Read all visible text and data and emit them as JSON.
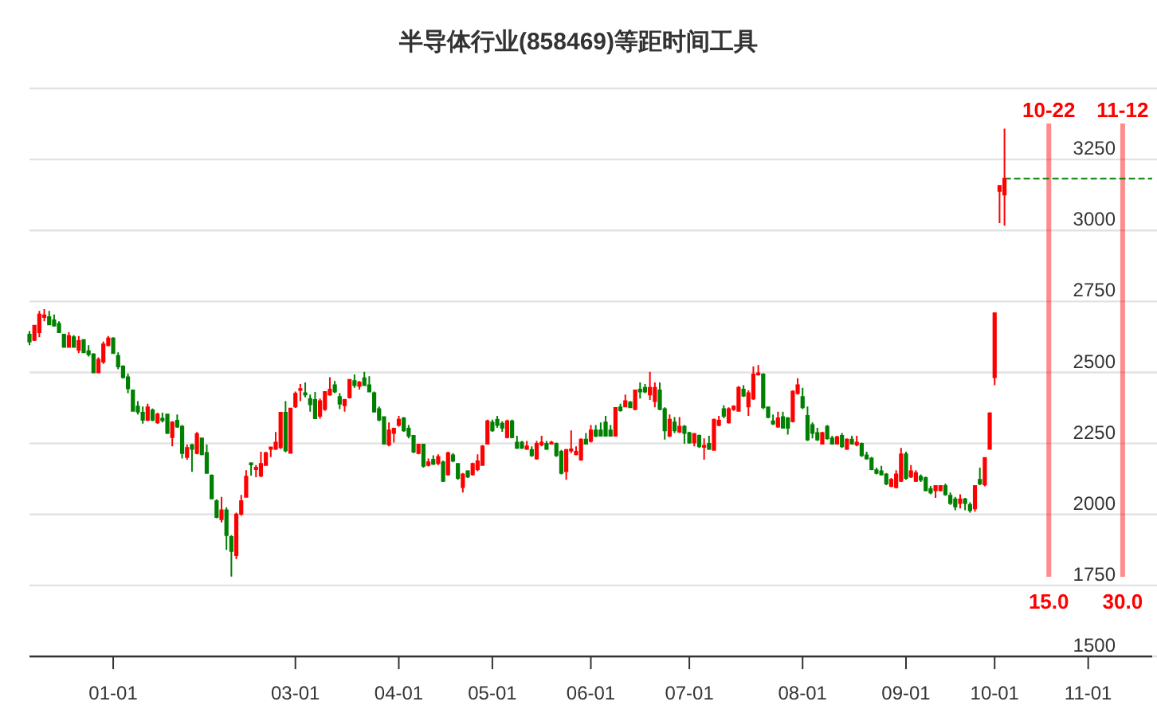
{
  "chart_data": {
    "type": "candlestick",
    "title": "半导体行业(858469)等距时间工具",
    "categories": [
      null,
      null,
      null,
      null,
      null,
      null,
      null,
      null,
      null,
      null,
      null,
      null,
      null,
      null,
      null,
      null,
      null,
      "01-01",
      null,
      null,
      null,
      null,
      null,
      null,
      null,
      null,
      null,
      null,
      null,
      null,
      null,
      null,
      null,
      null,
      null,
      null,
      null,
      null,
      null,
      null,
      null,
      null,
      null,
      null,
      null,
      null,
      null,
      null,
      null,
      null,
      null,
      null,
      null,
      null,
      "03-01",
      null,
      null,
      null,
      null,
      null,
      null,
      null,
      null,
      null,
      null,
      null,
      null,
      null,
      null,
      null,
      null,
      null,
      null,
      null,
      null,
      "04-01",
      null,
      null,
      null,
      null,
      null,
      null,
      null,
      null,
      null,
      null,
      null,
      null,
      null,
      null,
      null,
      null,
      null,
      null,
      "05-01",
      null,
      null,
      null,
      null,
      null,
      null,
      null,
      null,
      null,
      null,
      null,
      null,
      null,
      null,
      null,
      null,
      null,
      null,
      null,
      "06-01",
      null,
      null,
      null,
      null,
      null,
      null,
      null,
      null,
      null,
      null,
      null,
      null,
      null,
      null,
      null,
      null,
      null,
      null,
      null,
      "07-01",
      null,
      null,
      null,
      null,
      null,
      null,
      null,
      null,
      null,
      null,
      null,
      null,
      null,
      null,
      null,
      null,
      null,
      null,
      null,
      null,
      null,
      null,
      "08-01",
      null,
      null,
      null,
      null,
      null,
      null,
      null,
      null,
      null,
      null,
      null,
      null,
      null,
      null,
      null,
      null,
      null,
      null,
      null,
      null,
      "09-01",
      null,
      null,
      null,
      null,
      null,
      null,
      null,
      null,
      null,
      null,
      null,
      null,
      null,
      null,
      null,
      null,
      null,
      "10-01",
      null,
      null,
      null,
      null,
      null,
      null,
      null,
      null,
      null,
      null,
      null,
      null,
      null,
      null,
      null,
      null,
      null,
      null,
      "11-01",
      null,
      null,
      null,
      null,
      null,
      null,
      null,
      null,
      null,
      null,
      null,
      null,
      null
    ],
    "ohlc": [
      [
        2633,
        2646,
        2596,
        2609
      ],
      [
        2614,
        2667,
        2611,
        2665
      ],
      [
        2642,
        2717,
        2624,
        2704
      ],
      [
        2695,
        2723,
        2680,
        2701
      ],
      [
        2695,
        2717,
        2667,
        2669
      ],
      [
        2684,
        2704,
        2661,
        2665
      ],
      [
        2671,
        2680,
        2639,
        2642
      ],
      [
        2633,
        2636,
        2588,
        2590
      ],
      [
        2590,
        2642,
        2590,
        2628
      ],
      [
        2624,
        2631,
        2590,
        2590
      ],
      [
        2579,
        2628,
        2568,
        2611
      ],
      [
        2614,
        2614,
        2568,
        2571
      ],
      [
        2575,
        2596,
        2556,
        2564
      ],
      [
        2564,
        2568,
        2500,
        2500
      ],
      [
        2500,
        2553,
        2500,
        2545
      ],
      [
        2538,
        2609,
        2530,
        2599
      ],
      [
        2596,
        2628,
        2592,
        2620
      ],
      [
        2620,
        2624,
        2568,
        2568
      ],
      [
        2558,
        2571,
        2511,
        2521
      ],
      [
        2521,
        2525,
        2478,
        2483
      ],
      [
        2483,
        2496,
        2427,
        2444
      ],
      [
        2437,
        2440,
        2362,
        2365
      ],
      [
        2380,
        2399,
        2352,
        2362
      ],
      [
        2358,
        2380,
        2320,
        2333
      ],
      [
        2333,
        2390,
        2328,
        2377
      ],
      [
        2367,
        2373,
        2328,
        2333
      ],
      [
        2324,
        2358,
        2319,
        2352
      ],
      [
        2337,
        2358,
        2324,
        2332
      ],
      [
        2352,
        2352,
        2283,
        2287
      ],
      [
        2272,
        2328,
        2240,
        2324
      ],
      [
        2330,
        2352,
        2305,
        2309
      ],
      [
        2309,
        2315,
        2197,
        2216
      ],
      [
        2202,
        2246,
        2193,
        2234
      ],
      [
        2244,
        2249,
        2150,
        2231
      ],
      [
        2216,
        2290,
        2212,
        2283
      ],
      [
        2268,
        2268,
        2208,
        2212
      ],
      [
        2217,
        2246,
        2146,
        2146
      ],
      [
        2137,
        2141,
        2056,
        2056
      ],
      [
        2047,
        2053,
        1987,
        1991
      ],
      [
        1983,
        2062,
        1972,
        2015
      ],
      [
        2015,
        2025,
        1875,
        1927
      ],
      [
        1921,
        1927,
        1781,
        1871
      ],
      [
        1856,
        2006,
        1843,
        2000
      ],
      [
        2002,
        2069,
        1996,
        2047
      ],
      [
        2062,
        2156,
        2062,
        2133
      ],
      [
        2180,
        2184,
        2137,
        2176
      ],
      [
        2159,
        2174,
        2131,
        2165
      ],
      [
        2137,
        2221,
        2131,
        2178
      ],
      [
        2174,
        2221,
        2174,
        2216
      ],
      [
        2231,
        2236,
        2202,
        2236
      ],
      [
        2231,
        2290,
        2227,
        2253
      ],
      [
        2236,
        2358,
        2231,
        2358
      ],
      [
        2358,
        2399,
        2219,
        2225
      ],
      [
        2217,
        2373,
        2217,
        2373
      ],
      [
        2380,
        2433,
        2375,
        2425
      ],
      [
        2438,
        2459,
        2399,
        2442
      ],
      [
        2427,
        2465,
        2412,
        2422
      ],
      [
        2407,
        2422,
        2362,
        2388
      ],
      [
        2403,
        2431,
        2337,
        2339
      ],
      [
        2347,
        2408,
        2337,
        2399
      ],
      [
        2371,
        2431,
        2365,
        2431
      ],
      [
        2422,
        2483,
        2418,
        2440
      ],
      [
        2455,
        2470,
        2427,
        2433
      ],
      [
        2414,
        2427,
        2371,
        2390
      ],
      [
        2384,
        2407,
        2362,
        2403
      ],
      [
        2412,
        2474,
        2408,
        2474
      ],
      [
        2470,
        2493,
        2446,
        2455
      ],
      [
        2452,
        2470,
        2440,
        2465
      ],
      [
        2480,
        2502,
        2452,
        2455
      ],
      [
        2455,
        2487,
        2433,
        2433
      ],
      [
        2427,
        2433,
        2362,
        2362
      ],
      [
        2371,
        2380,
        2328,
        2334
      ],
      [
        2343,
        2343,
        2246,
        2249
      ],
      [
        2246,
        2324,
        2240,
        2296
      ],
      [
        2287,
        2305,
        2253,
        2302
      ],
      [
        2315,
        2347,
        2309,
        2334
      ],
      [
        2339,
        2343,
        2291,
        2296
      ],
      [
        2302,
        2315,
        2268,
        2277
      ],
      [
        2277,
        2277,
        2216,
        2221
      ],
      [
        2216,
        2249,
        2212,
        2246
      ],
      [
        2246,
        2249,
        2165,
        2171
      ],
      [
        2174,
        2197,
        2169,
        2184
      ],
      [
        2193,
        2208,
        2174,
        2178
      ],
      [
        2180,
        2212,
        2174,
        2203
      ],
      [
        2184,
        2189,
        2114,
        2118
      ],
      [
        2141,
        2221,
        2137,
        2216
      ],
      [
        2208,
        2216,
        2184,
        2189
      ],
      [
        2178,
        2178,
        2122,
        2128
      ],
      [
        2096,
        2146,
        2077,
        2141
      ],
      [
        2152,
        2156,
        2128,
        2133
      ],
      [
        2141,
        2182,
        2137,
        2178
      ],
      [
        2159,
        2212,
        2152,
        2187
      ],
      [
        2174,
        2244,
        2171,
        2240
      ],
      [
        2249,
        2334,
        2246,
        2328
      ],
      [
        2324,
        2334,
        2291,
        2296
      ],
      [
        2334,
        2347,
        2305,
        2315
      ],
      [
        2320,
        2328,
        2291,
        2305
      ],
      [
        2272,
        2334,
        2268,
        2328
      ],
      [
        2328,
        2334,
        2268,
        2272
      ],
      [
        2253,
        2277,
        2231,
        2234
      ],
      [
        2253,
        2259,
        2231,
        2234
      ],
      [
        2231,
        2259,
        2227,
        2240
      ],
      [
        2227,
        2240,
        2203,
        2208
      ],
      [
        2197,
        2259,
        2193,
        2249
      ],
      [
        2246,
        2277,
        2240,
        2253
      ],
      [
        2249,
        2259,
        2227,
        2231
      ],
      [
        2249,
        2259,
        2246,
        2253
      ],
      [
        2249,
        2253,
        2203,
        2208
      ],
      [
        2221,
        2227,
        2141,
        2146
      ],
      [
        2152,
        2231,
        2122,
        2227
      ],
      [
        2225,
        2296,
        2216,
        2229
      ],
      [
        2212,
        2240,
        2208,
        2221
      ],
      [
        2193,
        2268,
        2189,
        2264
      ],
      [
        2264,
        2287,
        2246,
        2249
      ],
      [
        2259,
        2315,
        2253,
        2296
      ],
      [
        2296,
        2315,
        2272,
        2277
      ],
      [
        2296,
        2324,
        2274,
        2277
      ],
      [
        2324,
        2347,
        2274,
        2277
      ],
      [
        2296,
        2315,
        2274,
        2277
      ],
      [
        2277,
        2377,
        2274,
        2375
      ],
      [
        2377,
        2390,
        2362,
        2367
      ],
      [
        2380,
        2422,
        2377,
        2399
      ],
      [
        2395,
        2399,
        2377,
        2377
      ],
      [
        2371,
        2440,
        2367,
        2437
      ],
      [
        2440,
        2465,
        2408,
        2433
      ],
      [
        2446,
        2459,
        2427,
        2433
      ],
      [
        2422,
        2502,
        2403,
        2446
      ],
      [
        2399,
        2465,
        2377,
        2446
      ],
      [
        2437,
        2465,
        2367,
        2371
      ],
      [
        2371,
        2377,
        2264,
        2296
      ],
      [
        2277,
        2352,
        2272,
        2334
      ],
      [
        2324,
        2343,
        2287,
        2296
      ],
      [
        2291,
        2343,
        2287,
        2309
      ],
      [
        2309,
        2315,
        2249,
        2287
      ],
      [
        2287,
        2291,
        2249,
        2253
      ],
      [
        2253,
        2287,
        2240,
        2283
      ],
      [
        2277,
        2281,
        2234,
        2240
      ],
      [
        2238,
        2268,
        2193,
        2242
      ],
      [
        2249,
        2277,
        2227,
        2231
      ],
      [
        2227,
        2337,
        2225,
        2334
      ],
      [
        2315,
        2347,
        2311,
        2330
      ],
      [
        2371,
        2384,
        2339,
        2347
      ],
      [
        2324,
        2377,
        2320,
        2371
      ],
      [
        2371,
        2384,
        2365,
        2380
      ],
      [
        2365,
        2452,
        2362,
        2446
      ],
      [
        2440,
        2455,
        2414,
        2418
      ],
      [
        2380,
        2437,
        2347,
        2427
      ],
      [
        2408,
        2521,
        2403,
        2493
      ],
      [
        2493,
        2526,
        2489,
        2497
      ],
      [
        2493,
        2497,
        2371,
        2377
      ],
      [
        2377,
        2380,
        2339,
        2343
      ],
      [
        2328,
        2352,
        2315,
        2320
      ],
      [
        2309,
        2362,
        2305,
        2339
      ],
      [
        2343,
        2362,
        2302,
        2305
      ],
      [
        2339,
        2343,
        2281,
        2305
      ],
      [
        2328,
        2437,
        2324,
        2433
      ],
      [
        2427,
        2480,
        2422,
        2455
      ],
      [
        2414,
        2446,
        2371,
        2377
      ],
      [
        2347,
        2380,
        2259,
        2264
      ],
      [
        2315,
        2324,
        2268,
        2287
      ],
      [
        2287,
        2305,
        2259,
        2264
      ],
      [
        2249,
        2291,
        2246,
        2287
      ],
      [
        2309,
        2315,
        2264,
        2268
      ],
      [
        2268,
        2277,
        2246,
        2249
      ],
      [
        2249,
        2277,
        2246,
        2272
      ],
      [
        2277,
        2287,
        2234,
        2240
      ],
      [
        2231,
        2268,
        2227,
        2264
      ],
      [
        2264,
        2277,
        2246,
        2249
      ],
      [
        2246,
        2277,
        2240,
        2253
      ],
      [
        2249,
        2253,
        2203,
        2208
      ],
      [
        2208,
        2221,
        2193,
        2197
      ],
      [
        2197,
        2203,
        2156,
        2159
      ],
      [
        2156,
        2165,
        2141,
        2146
      ],
      [
        2152,
        2171,
        2137,
        2141
      ],
      [
        2141,
        2146,
        2103,
        2109
      ],
      [
        2100,
        2128,
        2096,
        2122
      ],
      [
        2096,
        2156,
        2092,
        2141
      ],
      [
        2118,
        2234,
        2114,
        2212
      ],
      [
        2212,
        2221,
        2122,
        2128
      ],
      [
        2133,
        2174,
        2128,
        2152
      ],
      [
        2118,
        2156,
        2114,
        2146
      ],
      [
        2133,
        2141,
        2114,
        2122
      ],
      [
        2128,
        2133,
        2081,
        2085
      ],
      [
        2090,
        2100,
        2071,
        2077
      ],
      [
        2085,
        2103,
        2058,
        2100
      ],
      [
        2085,
        2103,
        2081,
        2100
      ],
      [
        2100,
        2109,
        2066,
        2071
      ],
      [
        2066,
        2077,
        2034,
        2040
      ],
      [
        2053,
        2062,
        2015,
        2028
      ],
      [
        2040,
        2071,
        2021,
        2053
      ],
      [
        2053,
        2058,
        2015,
        2040
      ],
      [
        2034,
        2043,
        2006,
        2015
      ],
      [
        2021,
        2103,
        2010,
        2100
      ],
      [
        2122,
        2165,
        2103,
        2109
      ],
      [
        2105,
        2202,
        2099,
        2199
      ],
      [
        2231,
        2360,
        2229,
        2356
      ],
      [
        2483,
        2712,
        2455,
        2708
      ],
      [
        3139,
        3157,
        3026,
        3157
      ],
      [
        3126,
        3358,
        3017,
        3182
      ],
      null,
      null,
      null,
      null,
      null,
      null,
      null,
      null,
      null,
      null,
      null,
      null,
      null,
      null,
      null,
      null,
      null,
      null,
      null,
      null,
      null,
      null,
      null,
      null,
      null,
      null,
      null,
      null,
      null,
      null
    ],
    "colors": [
      "#008000",
      "#ff0000",
      "#ff0000",
      "#ff0000",
      "#008000",
      "#008000",
      "#008000",
      "#008000",
      "#ff0000",
      "#008000",
      "#ff0000",
      "#008000",
      "#008000",
      "#008000",
      "#ff0000",
      "#ff0000",
      "#ff0000",
      "#008000",
      "#008000",
      "#008000",
      "#008000",
      "#008000",
      "#008000",
      "#008000",
      "#ff0000",
      "#008000",
      "#ff0000",
      "#008000",
      "#008000",
      "#ff0000",
      "#008000",
      "#008000",
      "#ff0000",
      "#008000",
      "#ff0000",
      "#008000",
      "#008000",
      "#008000",
      "#008000",
      "#ff0000",
      "#008000",
      "#008000",
      "#ff0000",
      "#ff0000",
      "#ff0000",
      "#008000",
      "#ff0000",
      "#ff0000",
      "#ff0000",
      "#ff0000",
      "#ff0000",
      "#ff0000",
      "#008000",
      "#ff0000",
      "#ff0000",
      "#ff0000",
      "#008000",
      "#008000",
      "#008000",
      "#ff0000",
      "#ff0000",
      "#ff0000",
      "#008000",
      "#008000",
      "#ff0000",
      "#ff0000",
      "#008000",
      "#ff0000",
      "#008000",
      "#008000",
      "#008000",
      "#008000",
      "#008000",
      "#ff0000",
      "#ff0000",
      "#ff0000",
      "#008000",
      "#008000",
      "#008000",
      "#ff0000",
      "#008000",
      "#ff0000",
      "#008000",
      "#ff0000",
      "#008000",
      "#ff0000",
      "#008000",
      "#008000",
      "#ff0000",
      "#008000",
      "#ff0000",
      "#ff0000",
      "#ff0000",
      "#ff0000",
      "#008000",
      "#008000",
      "#008000",
      "#ff0000",
      "#008000",
      "#008000",
      "#008000",
      "#ff0000",
      "#008000",
      "#ff0000",
      "#ff0000",
      "#008000",
      "#ff0000",
      "#008000",
      "#008000",
      "#ff0000",
      "#ff0000",
      "#ff0000",
      "#ff0000",
      "#008000",
      "#ff0000",
      "#008000",
      "#008000",
      "#008000",
      "#008000",
      "#ff0000",
      "#008000",
      "#ff0000",
      "#008000",
      "#ff0000",
      "#008000",
      "#008000",
      "#ff0000",
      "#ff0000",
      "#008000",
      "#008000",
      "#ff0000",
      "#008000",
      "#ff0000",
      "#008000",
      "#008000",
      "#ff0000",
      "#008000",
      "#ff0000",
      "#008000",
      "#ff0000",
      "#ff0000",
      "#008000",
      "#ff0000",
      "#ff0000",
      "#ff0000",
      "#008000",
      "#ff0000",
      "#ff0000",
      "#ff0000",
      "#008000",
      "#008000",
      "#008000",
      "#ff0000",
      "#008000",
      "#008000",
      "#ff0000",
      "#ff0000",
      "#008000",
      "#008000",
      "#008000",
      "#008000",
      "#ff0000",
      "#008000",
      "#008000",
      "#ff0000",
      "#008000",
      "#ff0000",
      "#008000",
      "#ff0000",
      "#008000",
      "#008000",
      "#008000",
      "#008000",
      "#008000",
      "#008000",
      "#ff0000",
      "#ff0000",
      "#ff0000",
      "#008000",
      "#ff0000",
      "#ff0000",
      "#008000",
      "#008000",
      "#008000",
      "#ff0000",
      "#ff0000",
      "#008000",
      "#008000",
      "#008000",
      "#ff0000",
      "#008000",
      "#008000",
      "#ff0000",
      "#008000",
      "#ff0000",
      "#ff0000",
      "#ff0000",
      "#ff0000",
      "#ff0000",
      null,
      null,
      null,
      null,
      null,
      null,
      null,
      null,
      null,
      null,
      null,
      null,
      null,
      null,
      null,
      null,
      null,
      null,
      null,
      null,
      null,
      null,
      null,
      null,
      null,
      null,
      null,
      null,
      null,
      null
    ],
    "ylim": [
      1500,
      3500
    ],
    "yticks": [
      1500,
      1750,
      2000,
      2250,
      2500,
      2750,
      3000,
      3250,
      {
        "value": 3500,
        "label": null
      }
    ],
    "grid": "y",
    "series": [
      {
        "type": "line",
        "color": "#008000",
        "line_style": "dashed",
        "values": [
          null,
          null,
          null,
          null,
          null,
          null,
          null,
          null,
          null,
          null,
          null,
          null,
          null,
          null,
          null,
          null,
          null,
          null,
          null,
          null,
          null,
          null,
          null,
          null,
          null,
          null,
          null,
          null,
          null,
          null,
          null,
          null,
          null,
          null,
          null,
          null,
          null,
          null,
          null,
          null,
          null,
          null,
          null,
          null,
          null,
          null,
          null,
          null,
          null,
          null,
          null,
          null,
          null,
          null,
          null,
          null,
          null,
          null,
          null,
          null,
          null,
          null,
          null,
          null,
          null,
          null,
          null,
          null,
          null,
          null,
          null,
          null,
          null,
          null,
          null,
          null,
          null,
          null,
          null,
          null,
          null,
          null,
          null,
          null,
          null,
          null,
          null,
          null,
          null,
          null,
          null,
          null,
          null,
          null,
          null,
          null,
          null,
          null,
          null,
          null,
          null,
          null,
          null,
          null,
          null,
          null,
          null,
          null,
          null,
          null,
          null,
          null,
          null,
          null,
          null,
          null,
          null,
          null,
          null,
          null,
          null,
          null,
          null,
          null,
          null,
          null,
          null,
          null,
          null,
          null,
          null,
          null,
          null,
          null,
          null,
          null,
          null,
          null,
          null,
          null,
          null,
          null,
          null,
          null,
          null,
          null,
          null,
          null,
          null,
          null,
          null,
          null,
          null,
          null,
          null,
          null,
          null,
          null,
          null,
          null,
          null,
          null,
          null,
          null,
          null,
          null,
          null,
          null,
          null,
          null,
          null,
          null,
          null,
          null,
          null,
          null,
          null,
          null,
          null,
          null,
          null,
          null,
          null,
          null,
          null,
          null,
          null,
          null,
          null,
          null,
          null,
          null,
          null,
          null,
          null,
          null,
          null,
          null,
          3182,
          3182,
          3182,
          3182,
          3182,
          3182,
          3182,
          3182,
          3182,
          3182,
          3182,
          3182,
          3182,
          3182,
          3182,
          3182,
          3182,
          3182,
          3182,
          3182,
          3182,
          3182,
          3182,
          3182,
          3182,
          3182,
          3182,
          3182,
          3182,
          3182,
          3182
        ]
      }
    ],
    "annotations": [
      "10-22",
      "15.0",
      "11-12",
      "30.0"
    ]
  }
}
